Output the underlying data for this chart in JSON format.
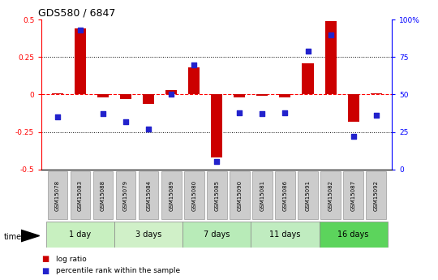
{
  "title": "GDS580 / 6847",
  "samples": [
    "GSM15078",
    "GSM15083",
    "GSM15088",
    "GSM15079",
    "GSM15084",
    "GSM15089",
    "GSM15080",
    "GSM15085",
    "GSM15090",
    "GSM15081",
    "GSM15086",
    "GSM15091",
    "GSM15082",
    "GSM15087",
    "GSM15092"
  ],
  "log_ratio": [
    0.01,
    0.44,
    -0.02,
    -0.03,
    -0.06,
    0.03,
    0.18,
    -0.42,
    -0.02,
    -0.01,
    -0.02,
    0.21,
    0.49,
    -0.18,
    0.01
  ],
  "percentile_rank": [
    35,
    93,
    37,
    32,
    27,
    50,
    70,
    5,
    38,
    37,
    38,
    79,
    90,
    22,
    36
  ],
  "groups": [
    {
      "label": "1 day",
      "start": 0,
      "end": 3,
      "color": "#c8f0c0"
    },
    {
      "label": "3 days",
      "start": 3,
      "end": 6,
      "color": "#d0f0c8"
    },
    {
      "label": "7 days",
      "start": 6,
      "end": 9,
      "color": "#b8ebb8"
    },
    {
      "label": "11 days",
      "start": 9,
      "end": 12,
      "color": "#c0ecc0"
    },
    {
      "label": "16 days",
      "start": 12,
      "end": 15,
      "color": "#5cd45c"
    }
  ],
  "ylim_left": [
    -0.5,
    0.5
  ],
  "ylim_right": [
    0,
    100
  ],
  "yticks_left": [
    -0.5,
    -0.25,
    0.0,
    0.25,
    0.5
  ],
  "yticks_right": [
    0,
    25,
    50,
    75,
    100
  ],
  "hlines_dotted": [
    0.25,
    -0.25
  ],
  "bar_color": "#cc0000",
  "dot_color": "#2222cc",
  "bar_width": 0.5,
  "dot_size": 25,
  "legend_items": [
    "log ratio",
    "percentile rank within the sample"
  ],
  "legend_colors": [
    "#cc0000",
    "#2222cc"
  ],
  "sample_box_color": "#cccccc",
  "sample_box_edge": "#999999"
}
